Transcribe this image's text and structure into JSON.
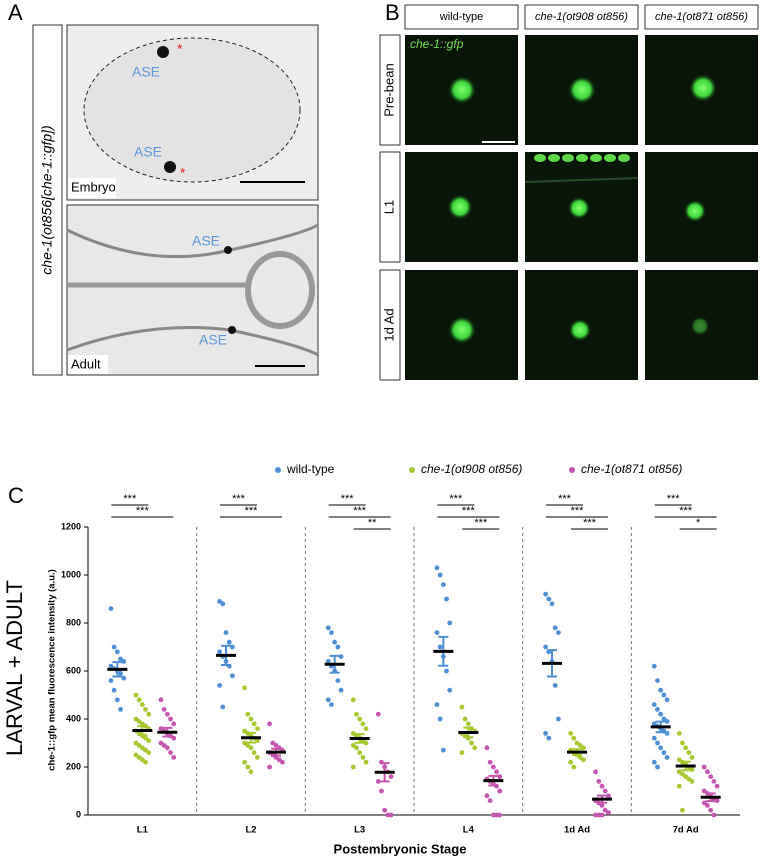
{
  "panel_a": {
    "label": "A",
    "side_label": "che-1(ot856[che-1::gfp])",
    "embryo": {
      "caption": "Embryo",
      "ase_labels": [
        "ASE",
        "ASE"
      ],
      "markers": [
        "*",
        "*"
      ]
    },
    "adult": {
      "caption": "Adult",
      "ase_labels": [
        "ASE",
        "ASE"
      ]
    }
  },
  "panel_b": {
    "label": "B",
    "reporter": "che-1::gfp",
    "columns": [
      "wild-type",
      "che-1(ot908 ot856)",
      "che-1(ot871 ot856)"
    ],
    "rows": [
      "Pre-bean",
      "L1",
      "1d Ad"
    ]
  },
  "chart_data": {
    "type": "dotplot",
    "panel_label": "C",
    "side_label": "LARVAL + ADULT",
    "y_label": "che-1::gfp mean fluorescence intensity (a.u.)",
    "x_label": "Postembryonic Stage",
    "categories": [
      "L1",
      "L2",
      "L3",
      "L4",
      "1d Ad",
      "7d Ad"
    ],
    "ylim": [
      0,
      1200
    ],
    "yticks": [
      0,
      200,
      400,
      600,
      800,
      1000,
      1200
    ],
    "series": [
      {
        "name": "wild-type",
        "color": "#4f8fd6",
        "values": [
          [
            860,
            700,
            680,
            650,
            640,
            620,
            610,
            600,
            590,
            570,
            560,
            520,
            480,
            440
          ],
          [
            890,
            880,
            760,
            720,
            700,
            680,
            660,
            640,
            620,
            580,
            540,
            450
          ],
          [
            780,
            760,
            720,
            700,
            660,
            640,
            620,
            600,
            560,
            520,
            480,
            460
          ],
          [
            1030,
            1000,
            960,
            900,
            800,
            760,
            700,
            660,
            600,
            520,
            460,
            400,
            270
          ],
          [
            920,
            900,
            880,
            780,
            760,
            700,
            680,
            640,
            540,
            400,
            340,
            320
          ],
          [
            620,
            560,
            520,
            500,
            480,
            460,
            440,
            420,
            400,
            390,
            380,
            370,
            360,
            350,
            340,
            320,
            300,
            280,
            260,
            240,
            220,
            200
          ]
        ],
        "means": [
          607,
          665,
          628,
          682,
          632,
          367
        ],
        "errors": [
          30,
          40,
          35,
          60,
          55,
          22
        ]
      },
      {
        "name": "che-1(ot908 ot856)",
        "color": "#a8c832",
        "values": [
          [
            500,
            480,
            460,
            440,
            420,
            400,
            390,
            380,
            370,
            360,
            350,
            340,
            330,
            320,
            310,
            300,
            290,
            280,
            270,
            260,
            250,
            240,
            230,
            220
          ],
          [
            530,
            420,
            400,
            380,
            360,
            350,
            340,
            330,
            320,
            310,
            300,
            290,
            280,
            260,
            240,
            220,
            200,
            180
          ],
          [
            480,
            420,
            400,
            380,
            360,
            340,
            330,
            320,
            310,
            300,
            290,
            280,
            260,
            240,
            220,
            200
          ],
          [
            450,
            400,
            380,
            360,
            350,
            340,
            330,
            320,
            300,
            280,
            260
          ],
          [
            340,
            320,
            300,
            290,
            280,
            270,
            260,
            250,
            240,
            230,
            220,
            200
          ],
          [
            340,
            300,
            280,
            260,
            240,
            230,
            220,
            210,
            200,
            190,
            180,
            170,
            160,
            150,
            140,
            120,
            20
          ]
        ],
        "means": [
          352,
          322,
          319,
          344,
          262,
          204
        ],
        "errors": [
          18,
          20,
          18,
          20,
          12,
          18
        ]
      },
      {
        "name": "che-1(ot871 ot856)",
        "color": "#c456b0",
        "values": [
          [
            480,
            440,
            420,
            400,
            380,
            360,
            350,
            340,
            330,
            320,
            300,
            290,
            280,
            260,
            240
          ],
          [
            380,
            300,
            290,
            280,
            270,
            260,
            250,
            240,
            230,
            220,
            200
          ],
          [
            420,
            220,
            200,
            180,
            160,
            140,
            100,
            20,
            0,
            0
          ],
          [
            280,
            220,
            200,
            180,
            160,
            150,
            140,
            130,
            120,
            100,
            80,
            60,
            0,
            0,
            0
          ],
          [
            180,
            140,
            120,
            100,
            80,
            60,
            50,
            40,
            20,
            10,
            0,
            0,
            0
          ],
          [
            200,
            180,
            160,
            140,
            120,
            100,
            90,
            80,
            70,
            60,
            50,
            40,
            20,
            0
          ]
        ],
        "means": [
          345,
          262,
          178,
          143,
          66,
          74
        ],
        "errors": [
          18,
          14,
          38,
          20,
          15,
          16
        ]
      }
    ],
    "significance": [
      [
        "***",
        "***",
        null
      ],
      [
        "***",
        "***",
        null
      ],
      [
        "***",
        "***",
        "**"
      ],
      [
        "***",
        "***",
        "***"
      ],
      [
        "***",
        "***",
        "***"
      ],
      [
        "***",
        "***",
        "*"
      ]
    ]
  }
}
